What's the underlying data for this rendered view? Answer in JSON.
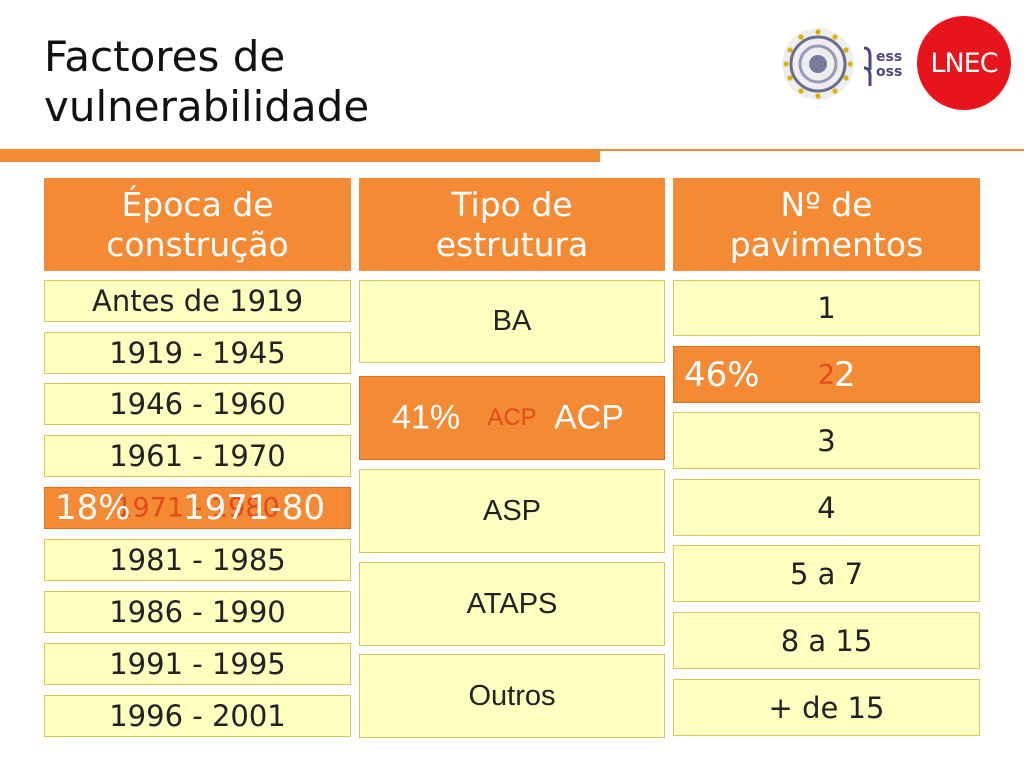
{
  "title": {
    "line1": "Factores de",
    "line2": "vulnerabilidade"
  },
  "logos": {
    "yess_line1": "ess",
    "yess_line2": "oss",
    "lnec_text": "LNEC"
  },
  "columns": [
    {
      "header": [
        "Época de",
        "construção"
      ],
      "items": [
        "Antes de 1919",
        "1919 - 1945",
        "1946 - 1960",
        "1961 - 1970",
        "1971 - 1980",
        "1981 - 1985",
        "1986 - 1990",
        "1991 - 1995",
        "1996 - 2001"
      ],
      "highlight": {
        "index": 4,
        "percent": "18%",
        "label": "1971-80"
      }
    },
    {
      "header": [
        "Tipo de",
        "estrutura"
      ],
      "items": [
        "BA",
        "ACP",
        "ASP",
        "ATAPS",
        "Outros"
      ],
      "highlight": {
        "index": 1,
        "percent": "41%",
        "label": "ACP"
      }
    },
    {
      "header": [
        "Nº de",
        "pavimentos"
      ],
      "items": [
        "1",
        "2",
        "3",
        "4",
        "5 a 7",
        "8 a 15",
        "+ de 15"
      ],
      "highlight": {
        "index": 1,
        "percent": "46%",
        "label": "2"
      }
    }
  ],
  "colors": {
    "accent_orange": "#f58a35",
    "cell_yellow": "#ffffbf",
    "lnec_red": "#e8141b"
  }
}
